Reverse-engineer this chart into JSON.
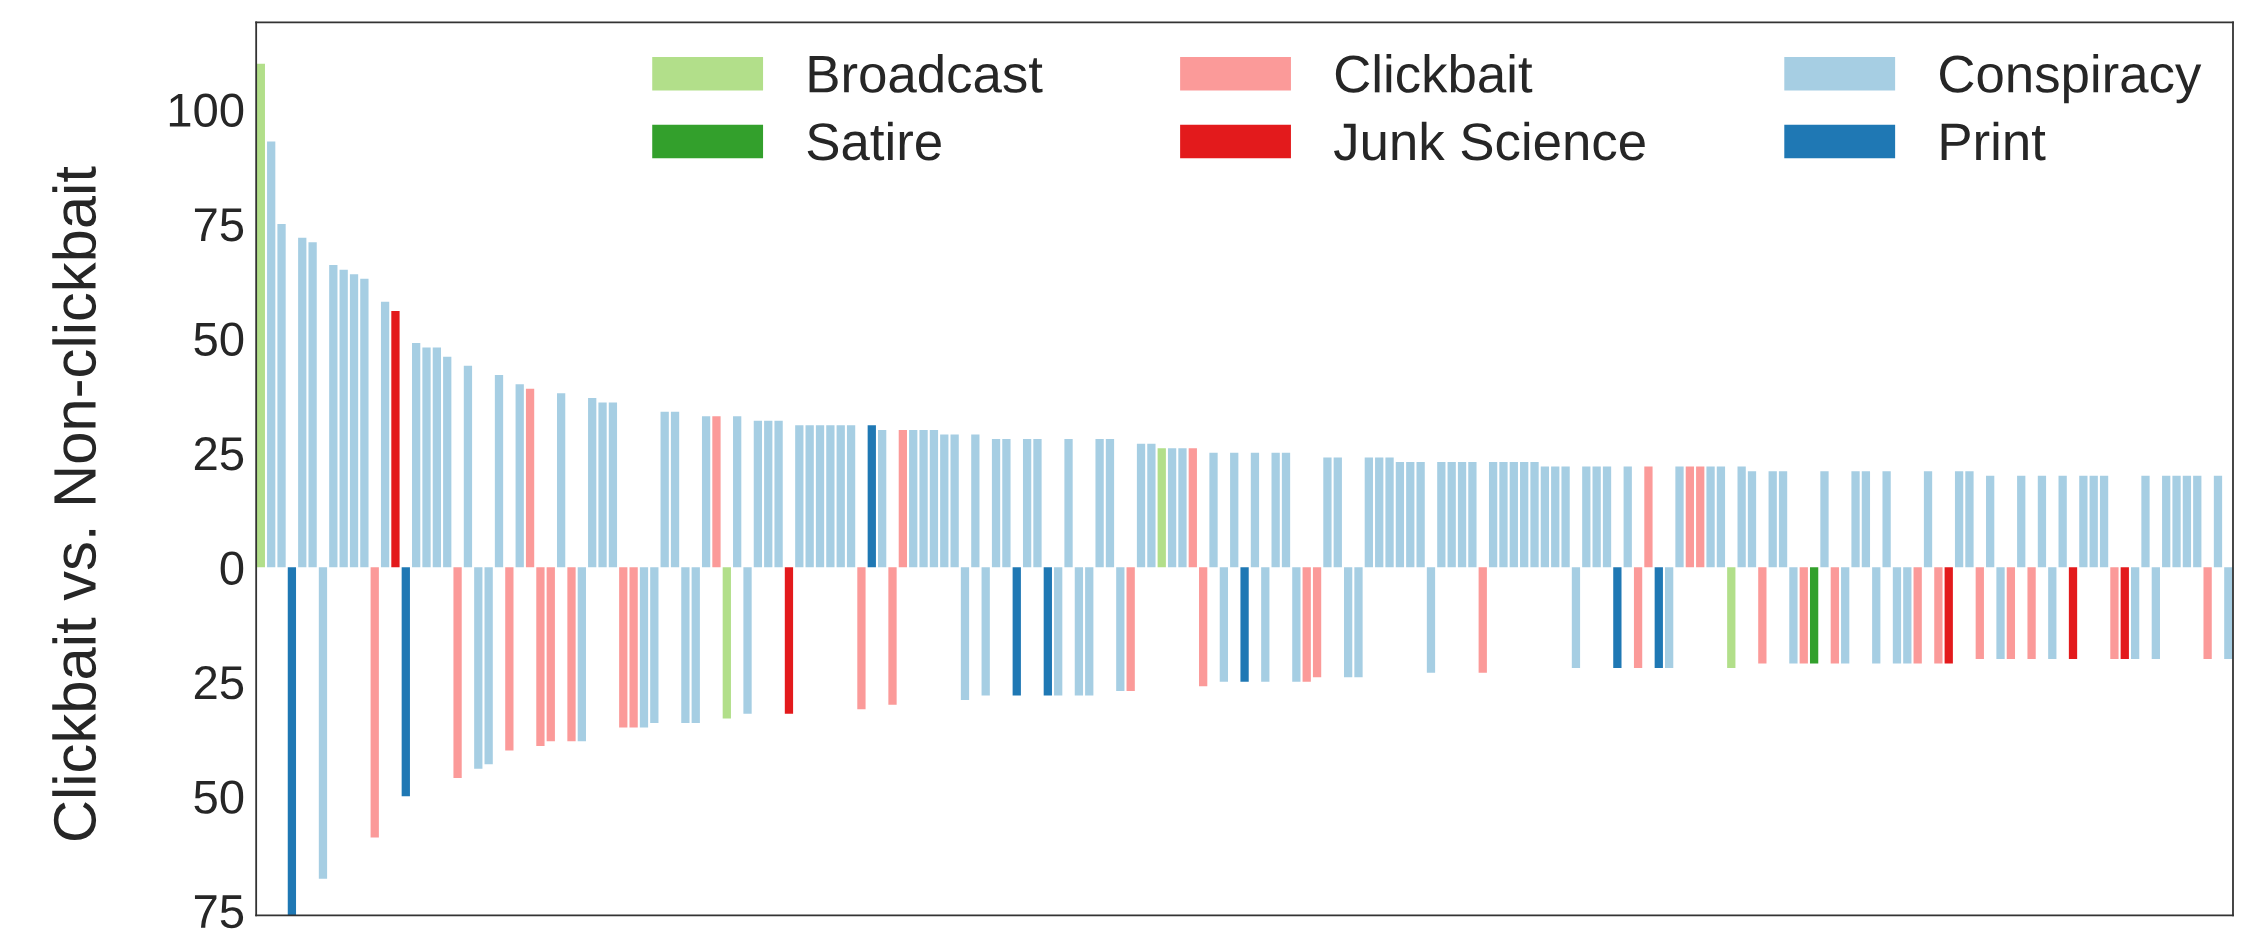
{
  "chart_data": {
    "type": "bar",
    "ylabel": "Clickbait vs. Non-clickbait",
    "categories": [
      null,
      null,
      null,
      null,
      null,
      null,
      null,
      null,
      null,
      null,
      null,
      null,
      null,
      null,
      null,
      null,
      null,
      null,
      null,
      null,
      null,
      null,
      null,
      null,
      null,
      null,
      null,
      null,
      null,
      null,
      null,
      null,
      null,
      null,
      null,
      null,
      null,
      null,
      null,
      null,
      null,
      null,
      null,
      null,
      null,
      null,
      null,
      null,
      null,
      null,
      null,
      null,
      null,
      null,
      null,
      null,
      null,
      null,
      null,
      null,
      null,
      null,
      null,
      null,
      null,
      null,
      null,
      null,
      null,
      null,
      null,
      null,
      null,
      null,
      null,
      null,
      null,
      null,
      null,
      null,
      null,
      null,
      null,
      null,
      null,
      null,
      null,
      null,
      null,
      null,
      null,
      null,
      null,
      null,
      null,
      null,
      null,
      null,
      null,
      null,
      null,
      null,
      null,
      null,
      null,
      null,
      null,
      null,
      null,
      null,
      null,
      null,
      null,
      null,
      null,
      null,
      null,
      null,
      null,
      null,
      null,
      null,
      null,
      null,
      null,
      null,
      null,
      null,
      null,
      null,
      null,
      null,
      null,
      null,
      null,
      null,
      null,
      null,
      null,
      null,
      null,
      null,
      null,
      null,
      null,
      null,
      null,
      null,
      null,
      null,
      null,
      null,
      null,
      null,
      null,
      null,
      null,
      null,
      null,
      null,
      null,
      null,
      null,
      null,
      null,
      null,
      null,
      null,
      null,
      null,
      null,
      null,
      null,
      null,
      null,
      null,
      null,
      null,
      null,
      null,
      null,
      null,
      null,
      null,
      null,
      null,
      null,
      null,
      null,
      null,
      null
    ],
    "series": [
      {
        "name": "Broadcast",
        "color": "#b2df8a",
        "values": [
          110,
          null,
          null,
          null,
          null,
          null,
          null,
          null,
          null,
          null,
          null,
          null,
          null,
          null,
          null,
          null,
          null,
          null,
          null,
          null,
          null,
          null,
          null,
          null,
          null,
          null,
          null,
          null,
          null,
          null,
          null,
          null,
          null,
          null,
          null,
          null,
          null,
          null,
          null,
          null,
          null,
          null,
          null,
          null,
          null,
          -33,
          null,
          null,
          null,
          null,
          null,
          null,
          null,
          null,
          null,
          null,
          null,
          null,
          null,
          null,
          null,
          null,
          null,
          null,
          null,
          null,
          null,
          null,
          null,
          null,
          null,
          null,
          null,
          null,
          null,
          null,
          null,
          null,
          null,
          null,
          null,
          null,
          null,
          null,
          null,
          null,
          null,
          26,
          null,
          null,
          null,
          null,
          null,
          null,
          null,
          null,
          null,
          null,
          null,
          null,
          null,
          null,
          null,
          null,
          null,
          null,
          null,
          null,
          null,
          null,
          null,
          null,
          null,
          null,
          null,
          null,
          null,
          null,
          null,
          null,
          null,
          null,
          null,
          null,
          null,
          null,
          null,
          null,
          null,
          null,
          null,
          null,
          null,
          null,
          null,
          null,
          null,
          null,
          null,
          null,
          null,
          null,
          -22,
          null,
          null,
          null,
          null,
          null,
          null,
          null,
          null,
          null,
          null,
          null,
          null,
          null,
          null,
          null,
          null,
          null,
          null,
          null,
          null,
          null,
          null,
          null,
          null,
          null,
          null,
          null,
          null,
          null,
          null,
          null,
          null,
          null,
          null,
          null,
          null,
          null,
          null,
          null,
          null,
          null,
          null,
          null,
          null,
          null,
          null,
          null,
          null
        ]
      },
      {
        "name": "Satire",
        "color": "#33a02c",
        "values": [
          null,
          null,
          null,
          null,
          null,
          null,
          null,
          null,
          null,
          null,
          null,
          null,
          null,
          null,
          null,
          null,
          null,
          null,
          null,
          null,
          null,
          null,
          null,
          null,
          null,
          null,
          null,
          null,
          null,
          null,
          null,
          null,
          null,
          null,
          null,
          null,
          null,
          null,
          null,
          null,
          null,
          null,
          null,
          null,
          null,
          null,
          null,
          null,
          null,
          null,
          null,
          null,
          null,
          null,
          null,
          null,
          null,
          null,
          null,
          null,
          null,
          null,
          null,
          null,
          null,
          null,
          null,
          null,
          null,
          null,
          null,
          null,
          null,
          null,
          null,
          null,
          null,
          null,
          null,
          null,
          null,
          null,
          null,
          null,
          null,
          null,
          null,
          null,
          null,
          null,
          null,
          null,
          null,
          null,
          null,
          null,
          null,
          null,
          null,
          null,
          null,
          null,
          null,
          null,
          null,
          null,
          null,
          null,
          null,
          null,
          null,
          null,
          null,
          null,
          null,
          null,
          null,
          null,
          null,
          null,
          null,
          null,
          null,
          null,
          null,
          null,
          null,
          null,
          null,
          null,
          null,
          null,
          null,
          null,
          null,
          null,
          null,
          null,
          null,
          null,
          null,
          null,
          null,
          null,
          null,
          null,
          null,
          null,
          null,
          null,
          -21,
          null,
          null,
          null,
          null,
          null,
          null,
          null,
          null,
          null,
          null,
          null,
          null,
          null,
          null,
          null,
          null,
          null,
          null,
          null,
          null,
          null,
          null,
          null,
          null,
          null,
          null,
          null,
          null,
          null,
          null,
          null,
          null,
          null,
          null,
          null,
          null,
          null,
          null,
          null,
          null
        ]
      },
      {
        "name": "Clickbait",
        "color": "#fb9a99",
        "values": [
          null,
          null,
          null,
          null,
          null,
          null,
          null,
          null,
          null,
          null,
          null,
          -59,
          null,
          null,
          null,
          null,
          null,
          null,
          null,
          -46,
          null,
          null,
          null,
          null,
          -40,
          null,
          39,
          -39,
          -38,
          null,
          -38,
          null,
          null,
          null,
          null,
          -35,
          -35,
          null,
          null,
          null,
          null,
          null,
          null,
          null,
          33,
          null,
          null,
          null,
          null,
          null,
          null,
          null,
          null,
          null,
          null,
          null,
          null,
          null,
          -31,
          null,
          null,
          -30,
          30,
          null,
          null,
          null,
          null,
          null,
          null,
          null,
          null,
          null,
          null,
          null,
          null,
          null,
          null,
          null,
          null,
          null,
          null,
          null,
          null,
          null,
          -27,
          null,
          null,
          null,
          null,
          null,
          26,
          -26,
          null,
          null,
          null,
          null,
          null,
          null,
          null,
          null,
          null,
          -25,
          -24,
          null,
          null,
          null,
          null,
          null,
          null,
          null,
          null,
          null,
          null,
          null,
          null,
          null,
          null,
          null,
          -23,
          null,
          null,
          null,
          null,
          null,
          null,
          null,
          null,
          null,
          null,
          null,
          null,
          null,
          null,
          -22,
          22,
          null,
          null,
          null,
          22,
          22,
          null,
          null,
          null,
          null,
          null,
          -21,
          null,
          null,
          null,
          -21,
          null,
          null,
          -21,
          null,
          null,
          null,
          null,
          null,
          null,
          null,
          -21,
          null,
          -21,
          null,
          null,
          null,
          -20,
          null,
          null,
          -20,
          null,
          -20,
          null,
          null,
          null,
          null,
          null,
          null,
          null,
          -20,
          null,
          null,
          null,
          null,
          null,
          null,
          null,
          null,
          -20,
          null,
          null
        ]
      },
      {
        "name": "Junk Science",
        "color": "#e31a1c",
        "values": [
          null,
          null,
          null,
          null,
          null,
          null,
          null,
          null,
          null,
          null,
          null,
          null,
          null,
          56,
          null,
          null,
          null,
          null,
          null,
          null,
          null,
          null,
          null,
          null,
          null,
          null,
          null,
          null,
          null,
          null,
          null,
          null,
          null,
          null,
          null,
          null,
          null,
          null,
          null,
          null,
          null,
          null,
          null,
          null,
          null,
          null,
          null,
          null,
          null,
          null,
          null,
          -32,
          null,
          null,
          null,
          null,
          null,
          null,
          null,
          null,
          null,
          null,
          null,
          null,
          null,
          null,
          null,
          null,
          null,
          null,
          null,
          null,
          null,
          null,
          null,
          null,
          null,
          null,
          null,
          null,
          null,
          null,
          null,
          null,
          null,
          null,
          null,
          null,
          null,
          null,
          null,
          null,
          null,
          null,
          null,
          null,
          null,
          null,
          null,
          null,
          null,
          null,
          null,
          null,
          null,
          null,
          null,
          null,
          null,
          null,
          null,
          null,
          null,
          null,
          null,
          null,
          null,
          null,
          null,
          null,
          null,
          null,
          null,
          null,
          null,
          null,
          null,
          null,
          null,
          null,
          null,
          null,
          null,
          null,
          null,
          null,
          null,
          null,
          null,
          null,
          null,
          null,
          null,
          null,
          null,
          null,
          null,
          null,
          null,
          null,
          null,
          null,
          null,
          null,
          null,
          null,
          null,
          null,
          null,
          null,
          null,
          null,
          null,
          -21,
          null,
          null,
          null,
          null,
          null,
          null,
          null,
          null,
          null,
          null,
          null,
          -20,
          null,
          null,
          null,
          null,
          -20,
          null,
          null,
          null,
          null,
          null,
          null,
          null,
          null,
          null,
          null
        ]
      },
      {
        "name": "Conspiracy",
        "color": "#a6cee3",
        "values": [
          null,
          93,
          75,
          null,
          72,
          71,
          -68,
          66,
          65,
          64,
          63,
          null,
          58,
          null,
          null,
          49,
          48,
          48,
          46,
          null,
          44,
          -44,
          -43,
          42,
          null,
          40,
          null,
          null,
          null,
          38,
          null,
          -38,
          37,
          36,
          36,
          null,
          null,
          -35,
          -34,
          34,
          34,
          -34,
          -34,
          33,
          null,
          null,
          33,
          -32,
          32,
          32,
          32,
          null,
          31,
          31,
          31,
          31,
          31,
          31,
          null,
          null,
          30,
          null,
          null,
          30,
          30,
          30,
          29,
          29,
          -29,
          29,
          -28,
          28,
          28,
          null,
          28,
          28,
          null,
          -28,
          28,
          -28,
          -28,
          28,
          28,
          -27,
          null,
          27,
          27,
          null,
          26,
          26,
          null,
          null,
          25,
          -25,
          25,
          null,
          25,
          -25,
          25,
          25,
          -25,
          null,
          null,
          24,
          24,
          -24,
          -24,
          24,
          24,
          24,
          23,
          23,
          23,
          -23,
          23,
          23,
          23,
          23,
          null,
          23,
          23,
          23,
          23,
          23,
          22,
          22,
          22,
          -22,
          22,
          22,
          22,
          null,
          22,
          null,
          null,
          null,
          -22,
          22,
          null,
          null,
          22,
          22,
          null,
          22,
          21,
          null,
          21,
          21,
          -21,
          null,
          null,
          21,
          null,
          -21,
          21,
          21,
          -21,
          21,
          -21,
          -21,
          null,
          21,
          null,
          null,
          21,
          21,
          null,
          20,
          -20,
          null,
          20,
          null,
          20,
          -20,
          20,
          null,
          20,
          20,
          20,
          null,
          null,
          -20,
          20,
          -20,
          20,
          20,
          20,
          20,
          null,
          20,
          -20
        ]
      },
      {
        "name": "Print",
        "color": "#1f78b4",
        "values": [
          null,
          null,
          null,
          -76,
          null,
          null,
          null,
          null,
          null,
          null,
          null,
          null,
          null,
          null,
          -50,
          null,
          null,
          null,
          null,
          null,
          null,
          null,
          null,
          null,
          null,
          null,
          null,
          null,
          null,
          null,
          null,
          null,
          null,
          null,
          null,
          null,
          null,
          null,
          null,
          null,
          null,
          null,
          null,
          null,
          null,
          null,
          null,
          null,
          null,
          null,
          null,
          null,
          null,
          null,
          null,
          null,
          null,
          null,
          null,
          31,
          null,
          null,
          null,
          null,
          null,
          null,
          null,
          null,
          null,
          null,
          null,
          null,
          null,
          -28,
          null,
          null,
          -28,
          null,
          null,
          null,
          null,
          null,
          null,
          null,
          null,
          null,
          null,
          null,
          null,
          null,
          null,
          null,
          null,
          null,
          null,
          -25,
          null,
          null,
          null,
          null,
          null,
          null,
          null,
          null,
          null,
          null,
          null,
          null,
          null,
          null,
          null,
          null,
          null,
          null,
          null,
          null,
          null,
          null,
          null,
          null,
          null,
          null,
          null,
          null,
          null,
          null,
          null,
          null,
          null,
          null,
          null,
          -22,
          null,
          null,
          null,
          -22,
          null,
          null,
          null,
          null,
          null,
          null,
          null,
          null,
          null,
          null,
          null,
          null,
          null,
          null,
          null,
          null,
          null,
          null,
          null,
          null,
          null,
          null,
          null,
          null,
          null,
          null,
          null,
          null,
          null,
          null,
          null,
          null,
          null,
          null,
          null,
          null,
          null,
          null,
          null,
          null,
          null,
          null,
          null,
          null,
          null,
          null,
          null,
          null,
          null,
          null,
          null,
          null,
          null,
          null,
          null
        ]
      }
    ],
    "ylim": [
      -76,
      119
    ],
    "yticks": [
      {
        "value": -75,
        "label": "75"
      },
      {
        "value": -50,
        "label": "50"
      },
      {
        "value": -25,
        "label": "25"
      },
      0,
      25,
      50,
      75,
      100
    ],
    "legend": "top right",
    "grid": false
  }
}
